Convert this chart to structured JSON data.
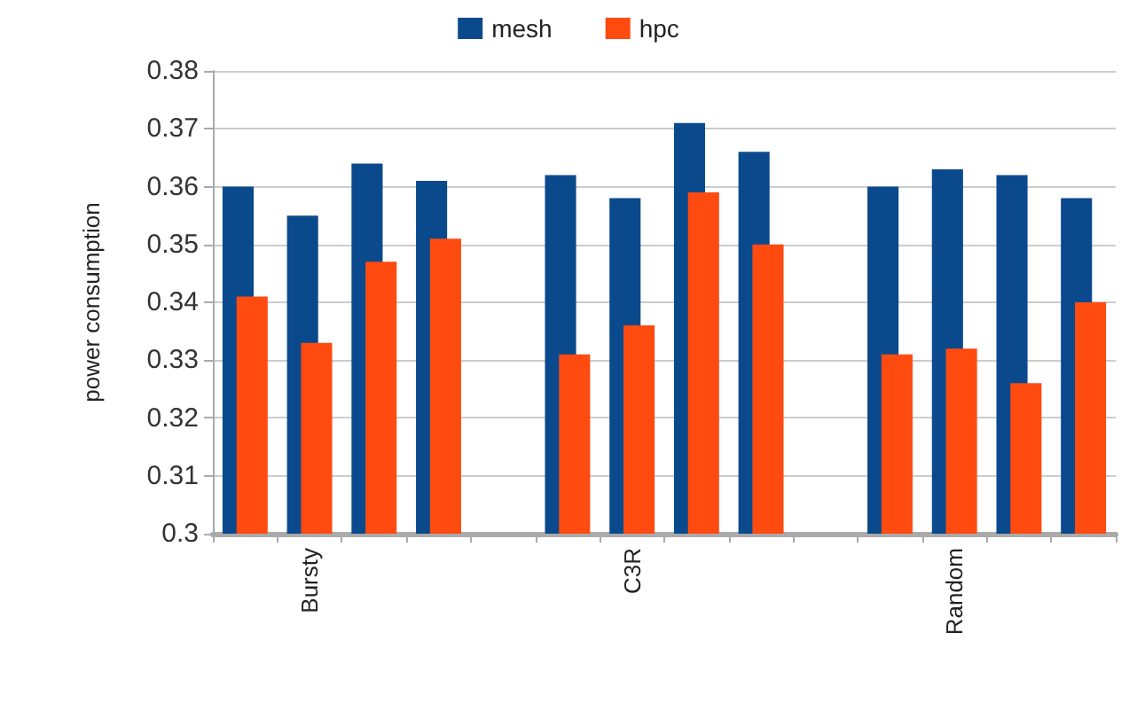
{
  "chart_data": {
    "type": "bar",
    "ylabel": "power consumption",
    "categories": [
      null,
      "Bursty",
      null,
      null,
      null,
      null,
      "C3R",
      null,
      null,
      null,
      null,
      "Random",
      null,
      null
    ],
    "series": [
      {
        "name": "mesh",
        "color": "#0a4a8c",
        "values": [
          0.36,
          0.355,
          0.364,
          0.361,
          null,
          0.362,
          0.358,
          0.371,
          0.366,
          null,
          0.36,
          0.363,
          0.362,
          0.358
        ]
      },
      {
        "name": "hpc",
        "color": "#ff4a10",
        "values": [
          0.341,
          0.333,
          0.347,
          0.351,
          null,
          0.331,
          0.336,
          0.359,
          0.35,
          null,
          0.331,
          0.332,
          0.326,
          0.34
        ]
      }
    ],
    "ylim": [
      0.3,
      0.38
    ],
    "yticks": [
      0.3,
      0.31,
      0.32,
      0.33,
      0.34,
      0.35,
      0.36,
      0.37,
      0.38
    ],
    "grid": "y",
    "legend": "top"
  }
}
